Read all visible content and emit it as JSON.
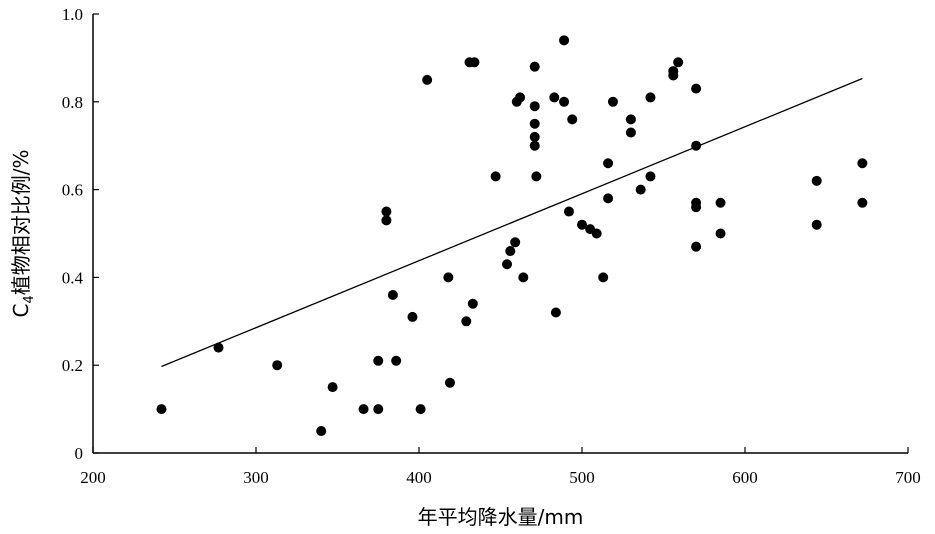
{
  "chart_data": {
    "type": "scatter",
    "xlabel": "年平均降水量/mm",
    "ylabel": "C4植物相对比例/%",
    "ylabel_parts": {
      "main": "C",
      "subscript": "4",
      "rest": "植物相对比例/%"
    },
    "xlim": [
      200,
      700
    ],
    "ylim": [
      0,
      1.0
    ],
    "x_ticks": [
      200,
      300,
      400,
      500,
      600,
      700
    ],
    "y_ticks": [
      0,
      0.2,
      0.4,
      0.6,
      0.8,
      1.0
    ],
    "x_tick_labels": [
      "200",
      "300",
      "400",
      "500",
      "600",
      "700"
    ],
    "y_tick_labels": [
      "0",
      "0.2",
      "0.4",
      "0.6",
      "0.8",
      "1.0"
    ],
    "grid": false,
    "trendline": {
      "x": [
        242,
        672
      ],
      "y": [
        0.197,
        0.853
      ]
    },
    "series": [
      {
        "points": [
          [
            242,
            0.1
          ],
          [
            277,
            0.24
          ],
          [
            313,
            0.2
          ],
          [
            340,
            0.05
          ],
          [
            347,
            0.15
          ],
          [
            366,
            0.1
          ],
          [
            375,
            0.1
          ],
          [
            375,
            0.21
          ],
          [
            380,
            0.55
          ],
          [
            380,
            0.53
          ],
          [
            384,
            0.36
          ],
          [
            386,
            0.21
          ],
          [
            396,
            0.31
          ],
          [
            401,
            0.1
          ],
          [
            405,
            0.85
          ],
          [
            418,
            0.4
          ],
          [
            419,
            0.16
          ],
          [
            429,
            0.3
          ],
          [
            431,
            0.89
          ],
          [
            434,
            0.89
          ],
          [
            433,
            0.34
          ],
          [
            447,
            0.63
          ],
          [
            454,
            0.43
          ],
          [
            456,
            0.46
          ],
          [
            459,
            0.48
          ],
          [
            460,
            0.8
          ],
          [
            462,
            0.81
          ],
          [
            464,
            0.4
          ],
          [
            471,
            0.88
          ],
          [
            471,
            0.79
          ],
          [
            471,
            0.75
          ],
          [
            471,
            0.72
          ],
          [
            471,
            0.7
          ],
          [
            472,
            0.63
          ],
          [
            483,
            0.81
          ],
          [
            484,
            0.32
          ],
          [
            489,
            0.94
          ],
          [
            489,
            0.8
          ],
          [
            492,
            0.55
          ],
          [
            494,
            0.76
          ],
          [
            500,
            0.52
          ],
          [
            505,
            0.51
          ],
          [
            509,
            0.5
          ],
          [
            513,
            0.4
          ],
          [
            516,
            0.66
          ],
          [
            516,
            0.58
          ],
          [
            519,
            0.8
          ],
          [
            530,
            0.76
          ],
          [
            530,
            0.73
          ],
          [
            536,
            0.6
          ],
          [
            542,
            0.81
          ],
          [
            542,
            0.63
          ],
          [
            556,
            0.86
          ],
          [
            556,
            0.87
          ],
          [
            559,
            0.89
          ],
          [
            570,
            0.83
          ],
          [
            570,
            0.7
          ],
          [
            570,
            0.57
          ],
          [
            570,
            0.56
          ],
          [
            570,
            0.47
          ],
          [
            585,
            0.57
          ],
          [
            585,
            0.5
          ],
          [
            644,
            0.62
          ],
          [
            644,
            0.52
          ],
          [
            672,
            0.66
          ],
          [
            672,
            0.57
          ]
        ]
      }
    ]
  }
}
